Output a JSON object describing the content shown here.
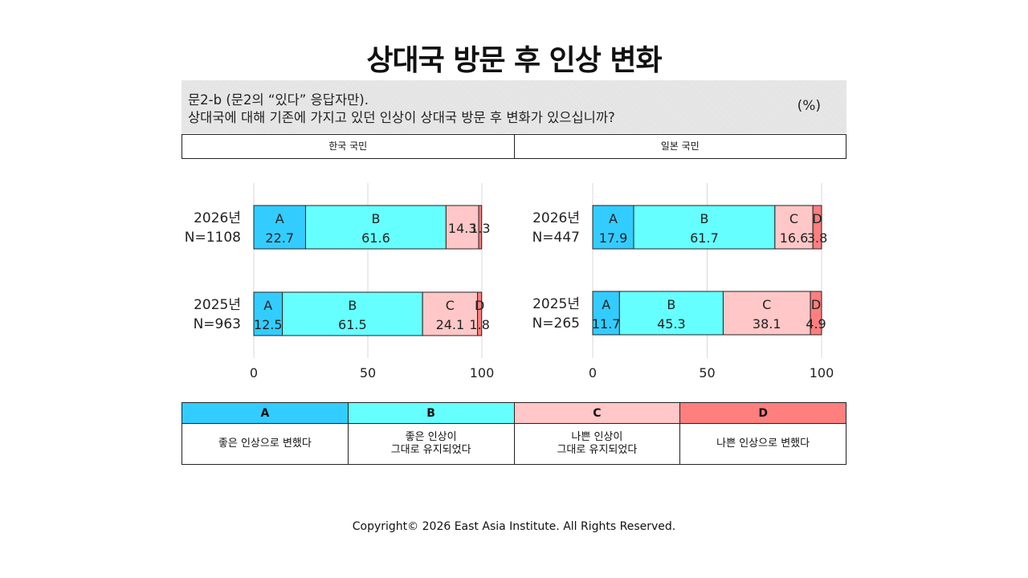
{
  "title": "상대국 방문 후 인상 변화",
  "question": {
    "line1": "문2-b (문2의 “있다” 응답자만).",
    "line2": "상대국에 대해 기존에 가지고 있던 인상이 상대국 방문 후 변화가 있으십니까?",
    "unit": "(%)"
  },
  "panel_headers": [
    "한국 국민",
    "일본 국민"
  ],
  "colors": {
    "A": "#33ccff",
    "B": "#66ffff",
    "C": "#ffc7c7",
    "D": "#ff7f7f"
  },
  "legend": [
    {
      "key": "A",
      "desc": "좋은 인상으로 변했다"
    },
    {
      "key": "B",
      "desc": "좋은 인상이\n그대로 유지되었다"
    },
    {
      "key": "C",
      "desc": "나쁜 인상이\n그대로 유지되었다"
    },
    {
      "key": "D",
      "desc": "나쁜 인상으로 변했다"
    }
  ],
  "chart_data": [
    {
      "type": "bar",
      "orientation": "horizontal",
      "stacked": true,
      "panel": "한국 국민",
      "categories": [
        "2026년 N=1108",
        "2025년 N=963"
      ],
      "series": [
        {
          "name": "A",
          "values": [
            22.7,
            12.5
          ]
        },
        {
          "name": "B",
          "values": [
            61.6,
            61.5
          ]
        },
        {
          "name": "C",
          "values": [
            14.3,
            24.1
          ]
        },
        {
          "name": "D",
          "values": [
            1.3,
            1.8
          ]
        }
      ],
      "xlim": [
        0,
        100
      ],
      "xticks": [
        0,
        50,
        100
      ],
      "segment_key_labels": [
        [
          "A",
          "B",
          "",
          ""
        ],
        [
          "A",
          "B",
          "C",
          "D"
        ]
      ],
      "grid": true
    },
    {
      "type": "bar",
      "orientation": "horizontal",
      "stacked": true,
      "panel": "일본 국민",
      "categories": [
        "2026년 N=447",
        "2025년 N=265"
      ],
      "series": [
        {
          "name": "A",
          "values": [
            17.9,
            11.7
          ]
        },
        {
          "name": "B",
          "values": [
            61.7,
            45.3
          ]
        },
        {
          "name": "C",
          "values": [
            16.6,
            38.1
          ]
        },
        {
          "name": "D",
          "values": [
            3.8,
            4.9
          ]
        }
      ],
      "xlim": [
        0,
        100
      ],
      "xticks": [
        0,
        50,
        100
      ],
      "segment_key_labels": [
        [
          "A",
          "B",
          "C",
          "D"
        ],
        [
          "A",
          "B",
          "C",
          "D"
        ]
      ],
      "grid": true
    }
  ],
  "copyright": "Copyright© 2026 East Asia Institute. All Rights Reserved."
}
